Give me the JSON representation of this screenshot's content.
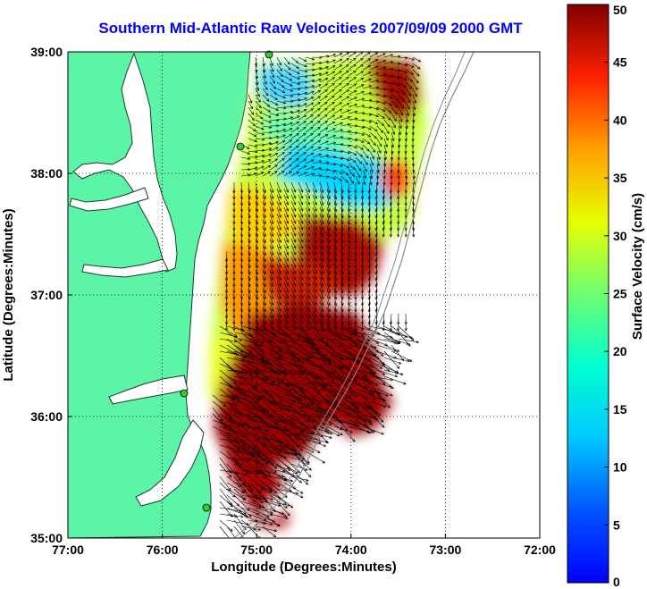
{
  "title": "Southern Mid-Atlantic Raw Velocities 2007/09/09 2000 GMT",
  "axes": {
    "xlabel": "Longitude (Degrees:Minutes)",
    "ylabel": "Latitude (Degrees:Minutes)",
    "x_ticks": [
      "77:00",
      "76:00",
      "75:00",
      "74:00",
      "73:00",
      "72:00"
    ],
    "y_ticks": [
      "39:00",
      "38:00",
      "37:00",
      "36:00",
      "35:00"
    ],
    "x_range_deg": [
      -77,
      -72
    ],
    "y_range_deg": [
      35,
      39
    ],
    "grid": "dotted"
  },
  "colorbar": {
    "label": "Surface Velocity (cm/s)",
    "ticks": [
      "0",
      "5",
      "10",
      "15",
      "20",
      "25",
      "30",
      "35",
      "40",
      "45",
      "50"
    ],
    "range": [
      0,
      50
    ],
    "colormap": "jet"
  },
  "colors": {
    "land": "#5cf5a8",
    "water": "#ffffff",
    "title": "#0000ff",
    "stations": "#33cc33"
  }
}
